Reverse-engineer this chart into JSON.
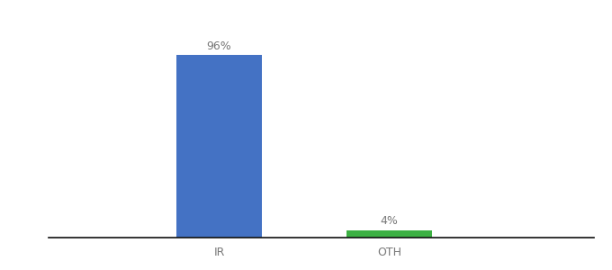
{
  "categories": [
    "IR",
    "OTH"
  ],
  "values": [
    96,
    4
  ],
  "bar_colors": [
    "#4472c4",
    "#3cb043"
  ],
  "labels": [
    "96%",
    "4%"
  ],
  "background_color": "#ffffff",
  "ylim": [
    0,
    108
  ],
  "bar_width": 0.5,
  "label_fontsize": 9,
  "tick_fontsize": 9,
  "x_positions": [
    1,
    2
  ],
  "xlim": [
    0.0,
    3.2
  ]
}
